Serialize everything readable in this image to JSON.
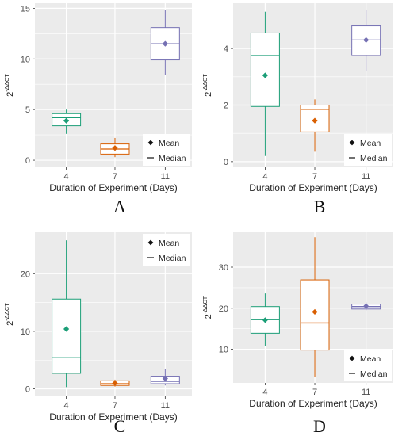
{
  "figure": {
    "colors": {
      "green": "#1b9e77",
      "orange": "#d95f02",
      "purple": "#7570b3",
      "panel_background": "#ebebeb",
      "grid": "#ffffff"
    },
    "legend_labels": {
      "mean": "Mean",
      "median": "Median"
    }
  },
  "chart_data": [
    {
      "panel": "A",
      "type": "box",
      "xlabel": "Duration of Experiment (Days)",
      "ylabel": "2",
      "ylabel_superscript": "-ΔΔCT",
      "categories": [
        "4",
        "7",
        "11"
      ],
      "yticks": [
        0,
        5,
        10,
        15
      ],
      "ylim": [
        -0.7,
        15.5
      ],
      "legend_position": "bottom-right",
      "boxes": [
        {
          "category": "4",
          "whisker_low": 2.6,
          "q1": 3.4,
          "median": 4.2,
          "q3": 4.6,
          "whisker_high": 5.0,
          "mean": 3.9,
          "color": "#1b9e77"
        },
        {
          "category": "7",
          "whisker_low": 0.3,
          "q1": 0.6,
          "median": 1.1,
          "q3": 1.6,
          "whisker_high": 2.2,
          "mean": 1.2,
          "color": "#d95f02"
        },
        {
          "category": "11",
          "whisker_low": 8.4,
          "q1": 9.9,
          "median": 11.5,
          "q3": 13.1,
          "whisker_high": 14.8,
          "mean": 11.5,
          "color": "#7570b3"
        }
      ]
    },
    {
      "panel": "B",
      "type": "box",
      "xlabel": "Duration of Experiment (Days)",
      "ylabel": "2",
      "ylabel_superscript": "-ΔΔCT",
      "categories": [
        "4",
        "7",
        "11"
      ],
      "yticks": [
        0,
        2,
        4
      ],
      "ylim": [
        -0.2,
        5.6
      ],
      "legend_position": "bottom-right",
      "boxes": [
        {
          "category": "4",
          "whisker_low": 0.2,
          "q1": 1.95,
          "median": 3.75,
          "q3": 4.55,
          "whisker_high": 5.3,
          "mean": 3.05,
          "color": "#1b9e77"
        },
        {
          "category": "7",
          "whisker_low": 0.35,
          "q1": 1.05,
          "median": 1.85,
          "q3": 2.0,
          "whisker_high": 2.2,
          "mean": 1.45,
          "color": "#d95f02"
        },
        {
          "category": "11",
          "whisker_low": 3.2,
          "q1": 3.75,
          "median": 4.3,
          "q3": 4.8,
          "whisker_high": 5.35,
          "mean": 4.3,
          "color": "#7570b3"
        }
      ]
    },
    {
      "panel": "C",
      "type": "box",
      "xlabel": "Duration of Experiment (Days)",
      "ylabel": "2",
      "ylabel_superscript": "-ΔΔCT",
      "categories": [
        "4",
        "7",
        "11"
      ],
      "yticks": [
        0,
        10,
        20
      ],
      "ylim": [
        -1.3,
        27.2
      ],
      "legend_position": "top-right",
      "boxes": [
        {
          "category": "4",
          "whisker_low": 0.3,
          "q1": 2.7,
          "median": 5.4,
          "q3": 15.6,
          "whisker_high": 25.8,
          "mean": 10.4,
          "color": "#1b9e77"
        },
        {
          "category": "7",
          "whisker_low": 0.4,
          "q1": 0.6,
          "median": 0.9,
          "q3": 1.4,
          "whisker_high": 1.6,
          "mean": 1.0,
          "color": "#d95f02"
        },
        {
          "category": "11",
          "whisker_low": 0.6,
          "q1": 0.9,
          "median": 1.3,
          "q3": 2.2,
          "whisker_high": 3.4,
          "mean": 1.8,
          "color": "#7570b3"
        }
      ]
    },
    {
      "panel": "D",
      "type": "box",
      "xlabel": "Duration of Experiment (Days)",
      "ylabel": "2",
      "ylabel_superscript": "-ΔΔCT",
      "categories": [
        "4",
        "7",
        "11"
      ],
      "yticks": [
        10,
        20,
        30
      ],
      "ylim": [
        1.8,
        38.5
      ],
      "legend_position": "bottom-right",
      "boxes": [
        {
          "category": "4",
          "whisker_low": 10.8,
          "q1": 13.9,
          "median": 17.2,
          "q3": 20.4,
          "whisker_high": 23.6,
          "mean": 17.1,
          "color": "#1b9e77"
        },
        {
          "category": "7",
          "whisker_low": 3.3,
          "q1": 9.8,
          "median": 16.4,
          "q3": 26.9,
          "whisker_high": 37.3,
          "mean": 19.1,
          "color": "#d95f02"
        },
        {
          "category": "11",
          "whisker_low": 19.5,
          "q1": 19.8,
          "median": 20.4,
          "q3": 21.0,
          "whisker_high": 21.4,
          "mean": 20.5,
          "color": "#7570b3"
        }
      ]
    }
  ]
}
